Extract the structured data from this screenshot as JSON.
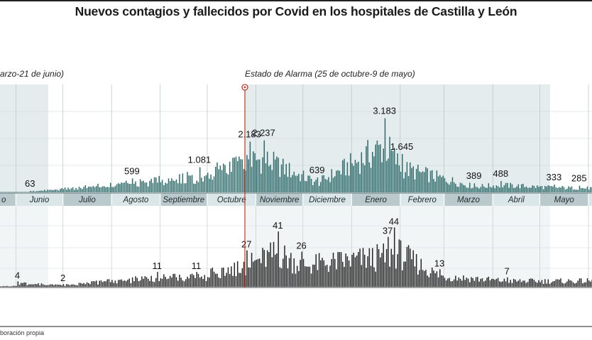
{
  "title": "Nuevos contagios y fallecidos por Covid en los hospitales de Castilla y León",
  "source": "boración propia",
  "periods": {
    "first": "arzo-21 de junio)",
    "alarm": "Estado de Alarma (25 de octubre-9 de mayo)"
  },
  "months": [
    "o",
    "Junio",
    "Julio",
    "Agosto",
    "Septiembre",
    "Octubre",
    "Noviembre",
    "Diciembre",
    "Enero",
    "Febrero",
    "Marzo",
    "Abril",
    "Mayo"
  ],
  "colors": {
    "cases": "#2f6b6b",
    "deaths": "#262626",
    "band_dark": "#b9c9cc",
    "band_light": "#dbe6e8",
    "shade": "#e4eced",
    "alarm_line": "#c0392b"
  },
  "chart_data": {
    "type": "bar",
    "title": "Nuevos contagios y fallecidos por Covid en los hospitales de Castilla y León",
    "x_axis": "date (daily), mid-May 2020 to June 2021",
    "series": [
      {
        "name": "",
        "labels": [
          {
            "date": "2020-06-10",
            "value": 63,
            "text": "63"
          },
          {
            "date": "2020-08-14",
            "value": 599,
            "text": "599"
          },
          {
            "date": "2020-09-26",
            "value": 1081,
            "text": "1.081"
          },
          {
            "date": "2020-10-28",
            "value": 2183,
            "text": "2.183"
          },
          {
            "date": "2020-11-06",
            "value": 2237,
            "text": "2.237"
          },
          {
            "date": "2020-12-10",
            "value": 639,
            "text": "639"
          },
          {
            "date": "2021-01-22",
            "value": 3183,
            "text": "3.183"
          },
          {
            "date": "2021-02-02",
            "value": 1645,
            "text": "1.645"
          },
          {
            "date": "2021-03-20",
            "value": 389,
            "text": "389"
          },
          {
            "date": "2021-04-06",
            "value": 488,
            "text": "488"
          },
          {
            "date": "2021-05-10",
            "value": 333,
            "text": "333"
          },
          {
            "date": "2021-05-26",
            "value": 285,
            "text": "285"
          }
        ]
      },
      {
        "name": "",
        "labels": [
          {
            "date": "2020-06-02",
            "value": 4,
            "text": "4"
          },
          {
            "date": "2020-07-01",
            "value": 2,
            "text": "2"
          },
          {
            "date": "2020-08-30",
            "value": 11,
            "text": "11"
          },
          {
            "date": "2020-09-24",
            "value": 11,
            "text": "11"
          },
          {
            "date": "2020-10-26",
            "value": 27,
            "text": "27"
          },
          {
            "date": "2020-11-15",
            "value": 41,
            "text": "41"
          },
          {
            "date": "2020-11-30",
            "value": 26,
            "text": "26"
          },
          {
            "date": "2021-01-24",
            "value": 37,
            "text": "37"
          },
          {
            "date": "2021-01-28",
            "value": 44,
            "text": "44"
          },
          {
            "date": "2021-02-26",
            "value": 13,
            "text": "13"
          },
          {
            "date": "2021-04-10",
            "value": 7,
            "text": "7"
          }
        ]
      }
    ]
  }
}
